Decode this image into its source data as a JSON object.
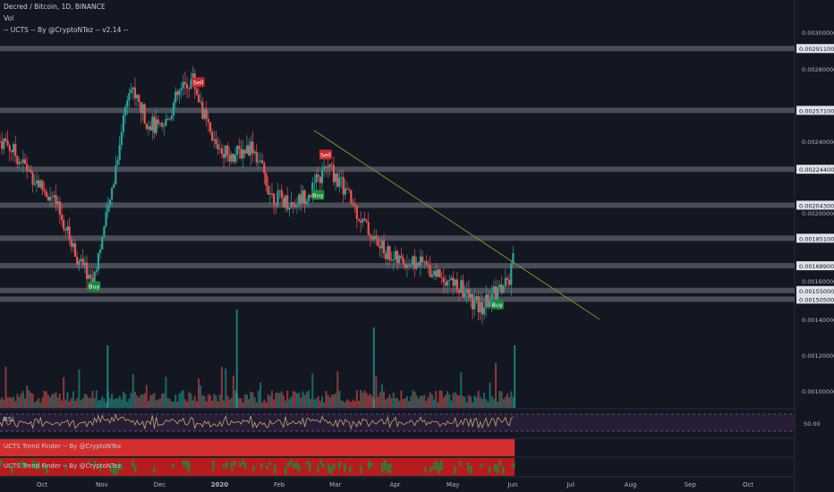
{
  "header": {
    "symbol_line": "Decred / Bitcoin, 1D, BINANCE",
    "vol_label": "Vol",
    "indicator_line": "-- UCTS -- By @CryptoNTez -- v2.14 --"
  },
  "panes": {
    "rsi_label": "RSI",
    "rsi_value": "50.00",
    "trend_finder_1": "UCTS Trend Finder -- By @CryptoNTez",
    "trend_finder_2": "UCTS Trend Finder -- By @CryptoNTez"
  },
  "colors": {
    "background": "#131722",
    "up": "#26a69a",
    "down": "#ef5350",
    "level_band": "#5d606b",
    "trendline": "#8a8a2a",
    "rsi_band": "#2a1e3a",
    "rsi_line": "#c8a86a"
  },
  "chart_data": {
    "type": "candlestick",
    "title": "Decred / Bitcoin, 1D, BINANCE",
    "price_axis_labels": [
      "0.00300000",
      "0.00280000",
      "0.00240000",
      "0.00200000",
      "0.00160000",
      "0.00140000",
      "0.00120000",
      "0.00100000"
    ],
    "price_axis_values": [
      0.003,
      0.0028,
      0.0024,
      0.002,
      0.0016,
      0.0014,
      0.0012,
      0.001
    ],
    "level_lines": [
      {
        "label": "0.00291100",
        "value": 0.002911
      },
      {
        "label": "0.00257100",
        "value": 0.002571
      },
      {
        "label": "0.00224400",
        "value": 0.002244
      },
      {
        "label": "0.00204300",
        "value": 0.002043
      },
      {
        "label": "0.00185100",
        "value": 0.001851
      },
      {
        "label": "0.00168900",
        "value": 0.001689
      },
      {
        "label": "0.00155000",
        "value": 0.00155
      },
      {
        "label": "0.00150500",
        "value": 0.001505
      }
    ],
    "time_axis_labels": [
      "Oct",
      "Nov",
      "Dec",
      "2020",
      "Feb",
      "Mar",
      "Apr",
      "May",
      "Jun",
      "Jul",
      "Aug",
      "Sep",
      "Oct"
    ],
    "signals": [
      {
        "type": "Buy",
        "date": "2019-10-28"
      },
      {
        "type": "Sell",
        "date": "2019-12-21"
      },
      {
        "type": "Buy",
        "date": "2020-02-21"
      },
      {
        "type": "Sell",
        "date": "2020-02-25"
      },
      {
        "type": "Buy",
        "date": "2020-05-24"
      }
    ],
    "price_path": [
      {
        "date": "2019-09-12",
        "close": 0.0024
      },
      {
        "date": "2019-09-25",
        "close": 0.00222
      },
      {
        "date": "2019-10-08",
        "close": 0.00205
      },
      {
        "date": "2019-10-20",
        "close": 0.00172
      },
      {
        "date": "2019-10-27",
        "close": 0.0016
      },
      {
        "date": "2019-11-05",
        "close": 0.00205
      },
      {
        "date": "2019-11-15",
        "close": 0.00272
      },
      {
        "date": "2019-11-24",
        "close": 0.00252
      },
      {
        "date": "2019-12-02",
        "close": 0.00245
      },
      {
        "date": "2019-12-10",
        "close": 0.00265
      },
      {
        "date": "2019-12-18",
        "close": 0.00275
      },
      {
        "date": "2019-12-28",
        "close": 0.0024
      },
      {
        "date": "2020-01-08",
        "close": 0.00232
      },
      {
        "date": "2020-01-18",
        "close": 0.00238
      },
      {
        "date": "2020-01-28",
        "close": 0.0021
      },
      {
        "date": "2020-02-08",
        "close": 0.00205
      },
      {
        "date": "2020-02-18",
        "close": 0.00213
      },
      {
        "date": "2020-02-26",
        "close": 0.00226
      },
      {
        "date": "2020-03-06",
        "close": 0.00213
      },
      {
        "date": "2020-03-15",
        "close": 0.00195
      },
      {
        "date": "2020-03-24",
        "close": 0.0018
      },
      {
        "date": "2020-04-02",
        "close": 0.00172
      },
      {
        "date": "2020-04-15",
        "close": 0.0017
      },
      {
        "date": "2020-04-27",
        "close": 0.00162
      },
      {
        "date": "2020-05-06",
        "close": 0.00155
      },
      {
        "date": "2020-05-15",
        "close": 0.00145
      },
      {
        "date": "2020-05-24",
        "close": 0.00155
      },
      {
        "date": "2020-05-30",
        "close": 0.0016
      },
      {
        "date": "2020-06-02",
        "close": 0.00176
      }
    ],
    "trendline": [
      {
        "date": "2020-02-19",
        "value": 0.00246
      },
      {
        "date": "2020-07-16",
        "value": 0.0014
      }
    ]
  }
}
